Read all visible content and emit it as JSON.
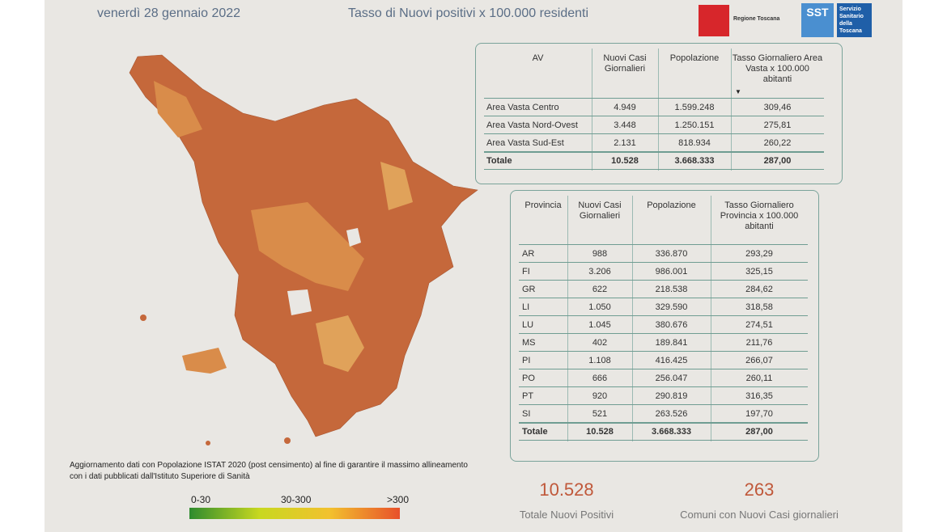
{
  "header": {
    "date": "venerdì 28 gennaio 2022",
    "title": "Tasso di Nuovi positivi x 100.000 residenti",
    "logo_region": "Regione Toscana",
    "logo_sst": "SST",
    "logo_sst_name": "Servizio Sanitario della Toscana"
  },
  "table_av": {
    "columns": [
      "AV",
      "Nuovi Casi Giornalieri",
      "Popolazione",
      "Tasso Giornaliero Area Vasta x 100.000 abitanti"
    ],
    "rows": [
      [
        "Area Vasta Centro",
        "4.949",
        "1.599.248",
        "309,46"
      ],
      [
        "Area Vasta Nord-Ovest",
        "3.448",
        "1.250.151",
        "275,81"
      ],
      [
        "Area Vasta Sud-Est",
        "2.131",
        "818.934",
        "260,22"
      ]
    ],
    "total": [
      "Totale",
      "10.528",
      "3.668.333",
      "287,00"
    ]
  },
  "table_province": {
    "columns": [
      "Provincia",
      "Nuovi Casi Giornalieri",
      "Popolazione",
      "Tasso Giornaliero Provincia x 100.000 abitanti"
    ],
    "rows": [
      [
        "AR",
        "988",
        "336.870",
        "293,29"
      ],
      [
        "FI",
        "3.206",
        "986.001",
        "325,15"
      ],
      [
        "GR",
        "622",
        "218.538",
        "284,62"
      ],
      [
        "LI",
        "1.050",
        "329.590",
        "318,58"
      ],
      [
        "LU",
        "1.045",
        "380.676",
        "274,51"
      ],
      [
        "MS",
        "402",
        "189.841",
        "211,76"
      ],
      [
        "PI",
        "1.108",
        "416.425",
        "266,07"
      ],
      [
        "PO",
        "666",
        "256.047",
        "260,11"
      ],
      [
        "PT",
        "920",
        "290.819",
        "316,35"
      ],
      [
        "SI",
        "521",
        "263.526",
        "197,70"
      ]
    ],
    "total": [
      "Totale",
      "10.528",
      "3.668.333",
      "287,00"
    ]
  },
  "note": [
    "Aggiornamento dati con Popolazione ISTAT 2020 (post censimento) al fine di garantire il massimo allineamento",
    "con i dati pubblicati dall'Istituto Superiore di Sanità"
  ],
  "legend": [
    "0-30",
    "30-300",
    ">300"
  ],
  "kpis": [
    {
      "value": "10.528",
      "label": "Totale Nuovi Positivi"
    },
    {
      "value": "263",
      "label": "Comuni con Nuovi Casi giornalieri"
    }
  ]
}
